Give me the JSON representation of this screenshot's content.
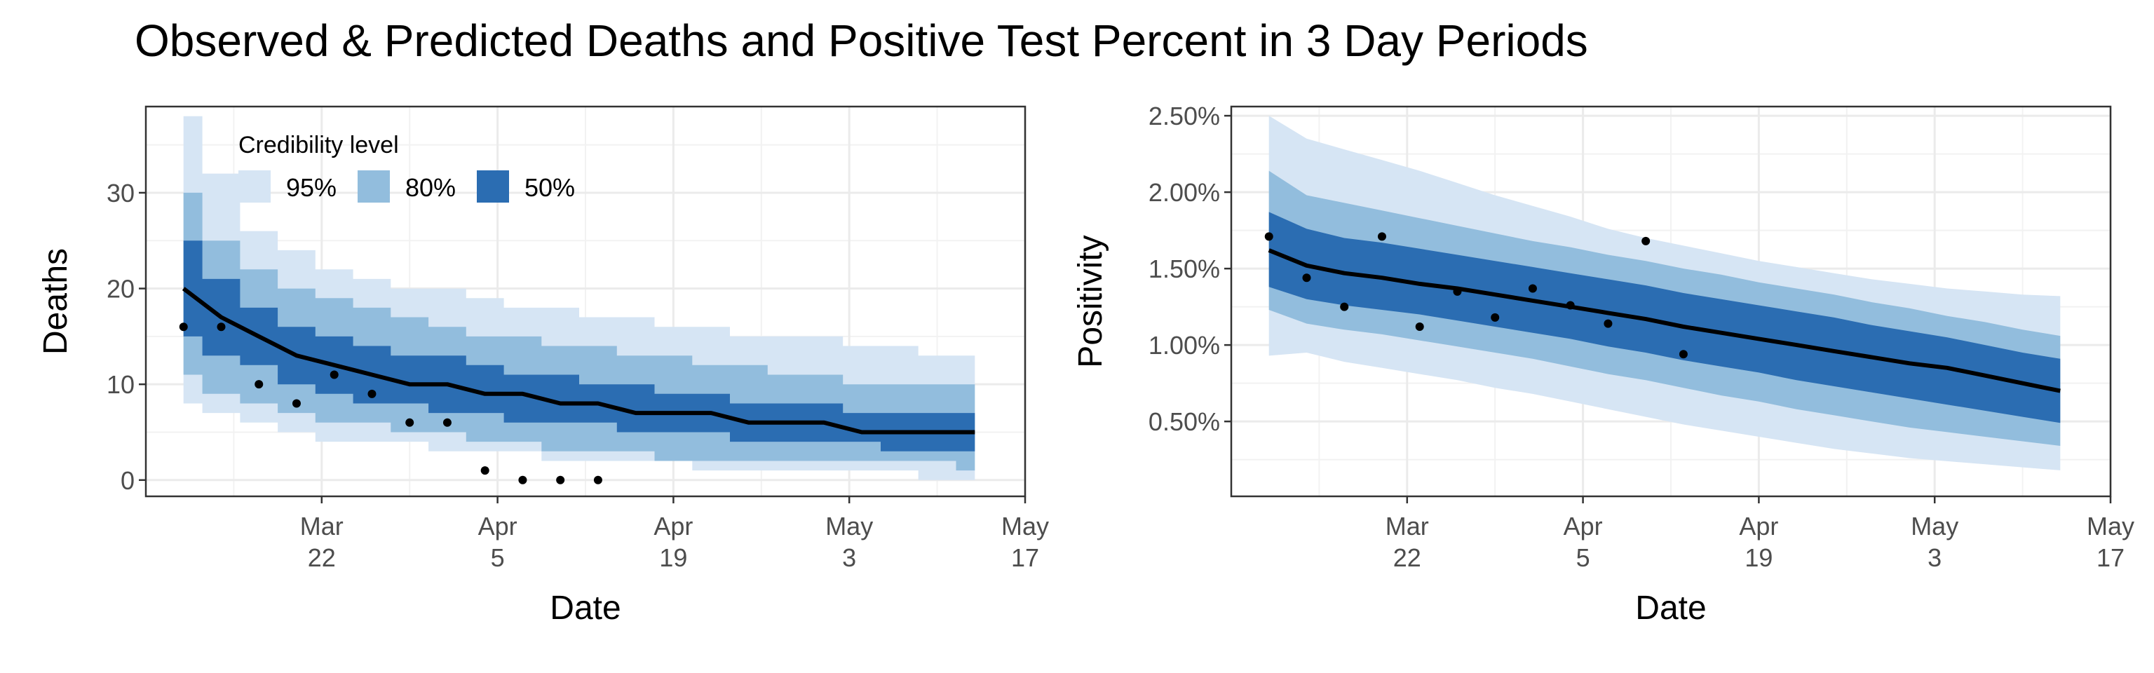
{
  "title": "Observed & Predicted Deaths and Positive Test Percent in 3 Day Periods",
  "colors": {
    "band95": "#d6e5f4",
    "band80": "#92bddd",
    "band50": "#2b6db2",
    "line": "#000000",
    "point": "#000000",
    "grid_major": "#ebebeb",
    "grid_minor": "#f2f2f2",
    "border": "#333333"
  },
  "legend": {
    "title": "Credibility level",
    "entries": [
      "95%",
      "80%",
      "50%"
    ],
    "placement": "top-left inside left panel"
  },
  "chart_data": [
    {
      "type": "area",
      "xlabel": "Date",
      "ylabel": "Deaths",
      "xlim": [
        "2020-03-08",
        "2020-05-17"
      ],
      "ylim": [
        -1.7,
        39
      ],
      "x_ticks": [
        {
          "date": "2020-03-22",
          "month": "Mar",
          "day": "22"
        },
        {
          "date": "2020-04-05",
          "month": "Apr",
          "day": "5"
        },
        {
          "date": "2020-04-19",
          "month": "Apr",
          "day": "19"
        },
        {
          "date": "2020-05-03",
          "month": "May",
          "day": "3"
        },
        {
          "date": "2020-05-17",
          "month": "May",
          "day": "17"
        }
      ],
      "y_ticks": [
        {
          "value": 0,
          "label": "0"
        },
        {
          "value": 10,
          "label": "10"
        },
        {
          "value": 20,
          "label": "20"
        },
        {
          "value": 30,
          "label": "30"
        }
      ],
      "grid": true,
      "x": [
        "2020-03-11",
        "2020-03-14",
        "2020-03-17",
        "2020-03-20",
        "2020-03-23",
        "2020-03-26",
        "2020-03-29",
        "2020-04-01",
        "2020-04-04",
        "2020-04-07",
        "2020-04-10",
        "2020-04-13",
        "2020-04-16",
        "2020-04-19",
        "2020-04-22",
        "2020-04-25",
        "2020-04-28",
        "2020-05-01",
        "2020-05-04",
        "2020-05-07",
        "2020-05-10",
        "2020-05-13"
      ],
      "median": [
        20,
        17,
        15,
        13,
        12,
        11,
        10,
        10,
        9,
        9,
        8,
        8,
        7,
        7,
        7,
        6,
        6,
        6,
        5,
        5,
        5,
        5
      ],
      "band50": {
        "lower": [
          15,
          13,
          12,
          10,
          9,
          8,
          8,
          7,
          7,
          6,
          6,
          6,
          5,
          5,
          5,
          4,
          4,
          4,
          4,
          3,
          3,
          3
        ],
        "upper": [
          25,
          21,
          18,
          16,
          15,
          14,
          13,
          13,
          12,
          11,
          11,
          10,
          10,
          9,
          9,
          8,
          8,
          8,
          7,
          7,
          7,
          7
        ]
      },
      "band80": {
        "lower": [
          11,
          9,
          8,
          7,
          6,
          6,
          5,
          5,
          4,
          4,
          3,
          3,
          3,
          2,
          2,
          2,
          2,
          2,
          2,
          2,
          2,
          1
        ]
      },
      "band80_upper": [
        30,
        25,
        22,
        20,
        19,
        18,
        17,
        16,
        15,
        15,
        14,
        14,
        13,
        13,
        12,
        12,
        11,
        11,
        10,
        10,
        10,
        10
      ],
      "band95": {
        "lower": [
          8,
          7,
          6,
          5,
          4,
          4,
          4,
          3,
          3,
          3,
          2,
          2,
          2,
          2,
          1,
          1,
          1,
          1,
          1,
          1,
          0,
          0
        ],
        "upper": [
          38,
          32,
          26,
          24,
          22,
          21,
          20,
          20,
          19,
          18,
          18,
          17,
          17,
          16,
          16,
          15,
          15,
          15,
          14,
          14,
          13,
          13
        ]
      },
      "observed": {
        "x": [
          "2020-03-11",
          "2020-03-14",
          "2020-03-17",
          "2020-03-20",
          "2020-03-23",
          "2020-03-26",
          "2020-03-29",
          "2020-04-01",
          "2020-04-04",
          "2020-04-07",
          "2020-04-10",
          "2020-04-13"
        ],
        "y": [
          16,
          16,
          10,
          8,
          11,
          9,
          6,
          6,
          1,
          0,
          0,
          0
        ]
      }
    },
    {
      "type": "area",
      "xlabel": "Date",
      "ylabel": "Positivity",
      "xlim": [
        "2020-03-08",
        "2020-05-17"
      ],
      "ylim": [
        0.0001,
        0.0256
      ],
      "x_ticks": [
        {
          "date": "2020-03-22",
          "month": "Mar",
          "day": "22"
        },
        {
          "date": "2020-04-05",
          "month": "Apr",
          "day": "5"
        },
        {
          "date": "2020-04-19",
          "month": "Apr",
          "day": "19"
        },
        {
          "date": "2020-05-03",
          "month": "May",
          "day": "3"
        },
        {
          "date": "2020-05-17",
          "month": "May",
          "day": "17"
        }
      ],
      "y_ticks": [
        {
          "value": 0.005,
          "label": "0.50%"
        },
        {
          "value": 0.01,
          "label": "1.00%"
        },
        {
          "value": 0.015,
          "label": "1.50%"
        },
        {
          "value": 0.02,
          "label": "2.00%"
        },
        {
          "value": 0.025,
          "label": "2.50%"
        }
      ],
      "grid": true,
      "x": [
        "2020-03-11",
        "2020-03-14",
        "2020-03-17",
        "2020-03-20",
        "2020-03-23",
        "2020-03-26",
        "2020-03-29",
        "2020-04-01",
        "2020-04-04",
        "2020-04-07",
        "2020-04-10",
        "2020-04-13",
        "2020-04-16",
        "2020-04-19",
        "2020-04-22",
        "2020-04-25",
        "2020-04-28",
        "2020-05-01",
        "2020-05-04",
        "2020-05-07",
        "2020-05-10",
        "2020-05-13"
      ],
      "median": [
        0.0162,
        0.0152,
        0.0147,
        0.0144,
        0.014,
        0.0137,
        0.0133,
        0.0129,
        0.0125,
        0.0121,
        0.0117,
        0.0112,
        0.0108,
        0.0104,
        0.01,
        0.0096,
        0.0092,
        0.0088,
        0.0085,
        0.008,
        0.0075,
        0.007
      ],
      "band50": {
        "lower": [
          0.0138,
          0.013,
          0.0126,
          0.0123,
          0.012,
          0.0116,
          0.0112,
          0.0108,
          0.0104,
          0.0099,
          0.0095,
          0.009,
          0.0086,
          0.0082,
          0.0077,
          0.0073,
          0.0069,
          0.0065,
          0.0061,
          0.0057,
          0.0053,
          0.0049
        ],
        "upper": [
          0.0187,
          0.0176,
          0.017,
          0.0167,
          0.0163,
          0.0159,
          0.0155,
          0.0151,
          0.0147,
          0.0143,
          0.0139,
          0.0134,
          0.013,
          0.0126,
          0.0122,
          0.0118,
          0.0113,
          0.0109,
          0.0105,
          0.01,
          0.0095,
          0.0091
        ]
      },
      "band80": {
        "lower": [
          0.0123,
          0.0114,
          0.011,
          0.0107,
          0.0103,
          0.0099,
          0.0095,
          0.0091,
          0.0086,
          0.0081,
          0.0077,
          0.0072,
          0.0067,
          0.0063,
          0.0058,
          0.0054,
          0.005,
          0.0046,
          0.0043,
          0.004,
          0.0037,
          0.0034
        ]
      },
      "band80_upper": [
        0.0214,
        0.0198,
        0.0193,
        0.0188,
        0.0183,
        0.0178,
        0.0173,
        0.0168,
        0.0164,
        0.0159,
        0.0155,
        0.015,
        0.0146,
        0.0141,
        0.0137,
        0.0133,
        0.0128,
        0.0124,
        0.0119,
        0.0115,
        0.011,
        0.0106
      ],
      "band95": {
        "lower": [
          0.0093,
          0.0095,
          0.0089,
          0.0085,
          0.0081,
          0.0077,
          0.0072,
          0.0068,
          0.0063,
          0.0058,
          0.0053,
          0.0048,
          0.0044,
          0.004,
          0.0036,
          0.0032,
          0.0029,
          0.0026,
          0.0024,
          0.0022,
          0.002,
          0.0018
        ],
        "upper": [
          0.025,
          0.0235,
          0.0228,
          0.0221,
          0.0214,
          0.0206,
          0.0198,
          0.0191,
          0.0184,
          0.0176,
          0.017,
          0.0165,
          0.016,
          0.0155,
          0.0151,
          0.0147,
          0.0143,
          0.014,
          0.0137,
          0.0135,
          0.0133,
          0.0132
        ]
      },
      "observed": {
        "x": [
          "2020-03-11",
          "2020-03-14",
          "2020-03-17",
          "2020-03-20",
          "2020-03-23",
          "2020-03-26",
          "2020-03-29",
          "2020-04-01",
          "2020-04-04",
          "2020-04-07",
          "2020-04-10",
          "2020-04-13",
          "2020-04-16"
        ],
        "y": [
          0.0171,
          0.0144,
          0.0125,
          0.0171,
          0.0112,
          0.0135,
          0.0118,
          0.0137,
          0.0126,
          0.0114,
          0.0168,
          0.0094,
          null
        ]
      }
    }
  ]
}
